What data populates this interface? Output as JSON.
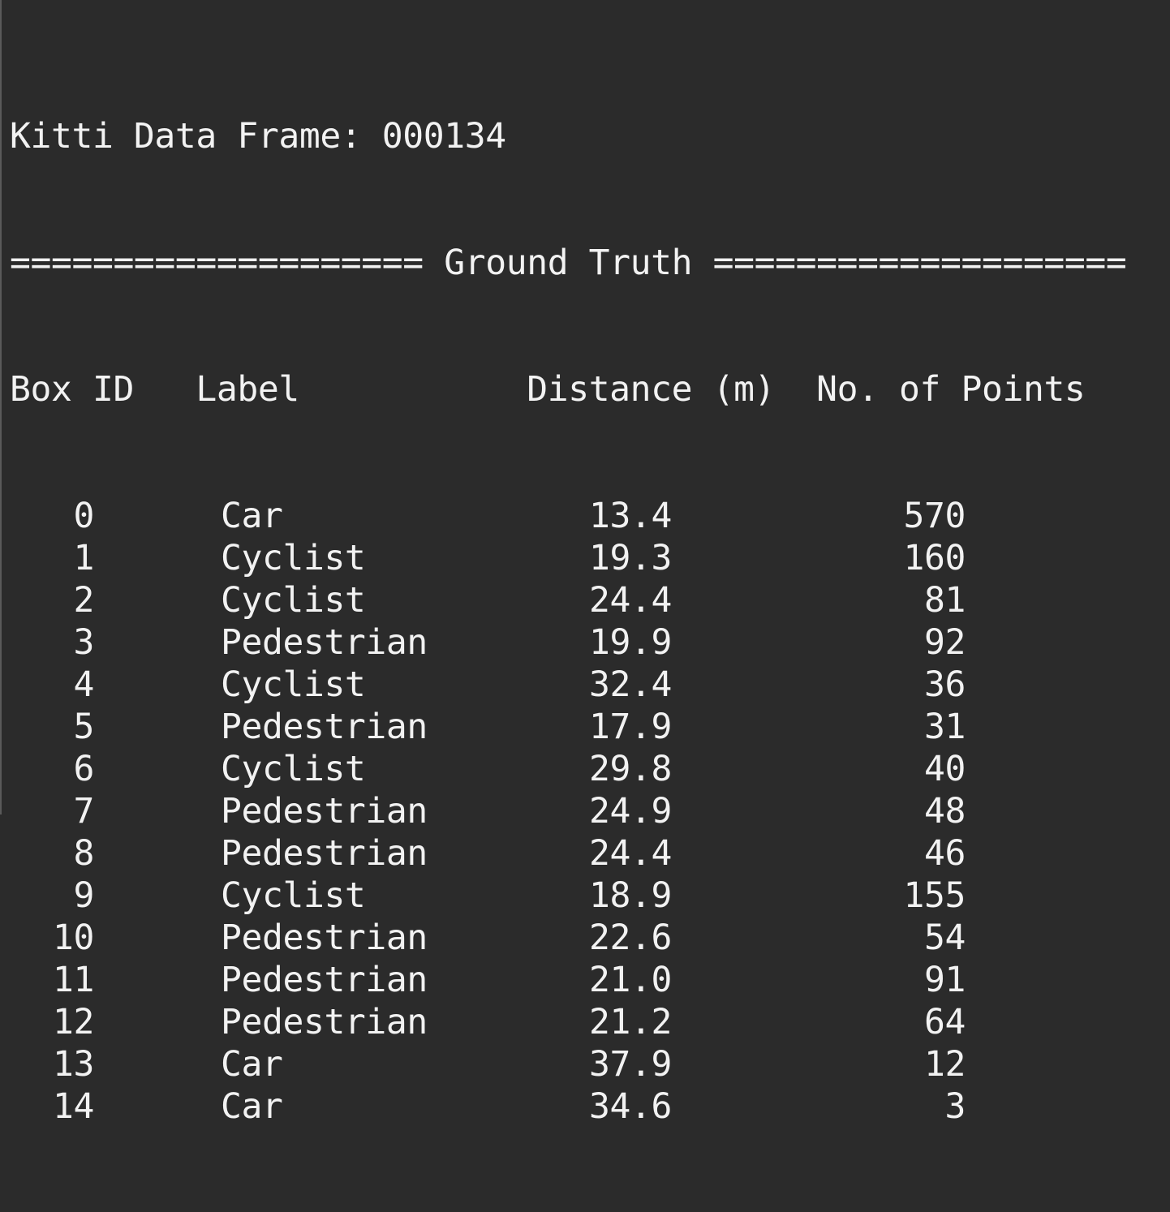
{
  "title_prefix": "Kitti Data Frame: ",
  "frame_id": "000134",
  "separator_left": "====================",
  "section_title": "Ground Truth",
  "separator_right": "====================",
  "headers": {
    "box_id": "Box ID",
    "label": "Label",
    "distance": "Distance (m)",
    "points": "No. of Points"
  },
  "rows": [
    {
      "id": "0",
      "label": "Car",
      "distance": "13.4",
      "points": "570"
    },
    {
      "id": "1",
      "label": "Cyclist",
      "distance": "19.3",
      "points": "160"
    },
    {
      "id": "2",
      "label": "Cyclist",
      "distance": "24.4",
      "points": "81"
    },
    {
      "id": "3",
      "label": "Pedestrian",
      "distance": "19.9",
      "points": "92"
    },
    {
      "id": "4",
      "label": "Cyclist",
      "distance": "32.4",
      "points": "36"
    },
    {
      "id": "5",
      "label": "Pedestrian",
      "distance": "17.9",
      "points": "31"
    },
    {
      "id": "6",
      "label": "Cyclist",
      "distance": "29.8",
      "points": "40"
    },
    {
      "id": "7",
      "label": "Pedestrian",
      "distance": "24.9",
      "points": "48"
    },
    {
      "id": "8",
      "label": "Pedestrian",
      "distance": "24.4",
      "points": "46"
    },
    {
      "id": "9",
      "label": "Cyclist",
      "distance": "18.9",
      "points": "155"
    },
    {
      "id": "10",
      "label": "Pedestrian",
      "distance": "22.6",
      "points": "54"
    },
    {
      "id": "11",
      "label": "Pedestrian",
      "distance": "21.0",
      "points": "91"
    },
    {
      "id": "12",
      "label": "Pedestrian",
      "distance": "21.2",
      "points": "64"
    },
    {
      "id": "13",
      "label": "Car",
      "distance": "37.9",
      "points": "12"
    },
    {
      "id": "14",
      "label": "Car",
      "distance": "34.6",
      "points": "3"
    }
  ],
  "colors": {
    "background": "#2b2b2b",
    "text": "#f2f2f2"
  }
}
